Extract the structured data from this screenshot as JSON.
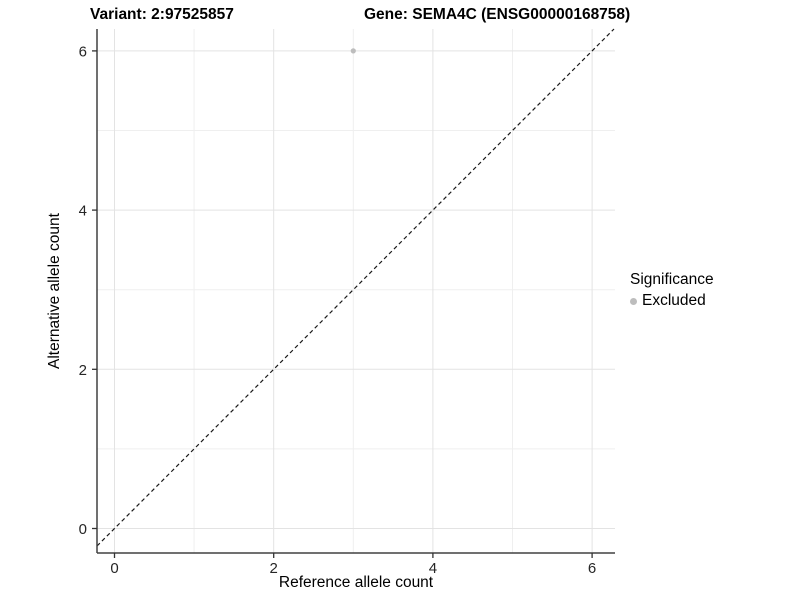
{
  "page": {
    "background": "#ffffff"
  },
  "chart_data": {
    "type": "scatter",
    "titles": {
      "left": "Variant: 2:97525857",
      "right": "Gene: SEMA4C (ENSG00000168758)"
    },
    "xlabel": "Reference allele count",
    "ylabel": "Alternative allele count",
    "x_ticks": [
      0,
      2,
      4,
      6
    ],
    "y_ticks": [
      0,
      2,
      4,
      6
    ],
    "xlim": [
      -0.25,
      6.3
    ],
    "ylim": [
      -0.3,
      6.3
    ],
    "grid": {
      "on": true,
      "major": [
        0,
        2,
        4,
        6
      ],
      "minor": [
        1,
        3,
        5
      ]
    },
    "series": [
      {
        "name": "Excluded",
        "color": "#bdbdbd",
        "marker": "dot",
        "points": [
          {
            "x": 3,
            "y": 6
          }
        ]
      }
    ],
    "reference_line": {
      "style": "dashed",
      "slope": 1,
      "intercept": 0,
      "color": "#1a1a1a",
      "dash": "4 3"
    },
    "legend": {
      "position": "right",
      "title": "Significance",
      "entries": [
        {
          "label": "Excluded",
          "color": "#bdbdbd",
          "marker": "dot-icon"
        }
      ]
    },
    "colors": {
      "grid_major": "#e3e3e3",
      "grid_minor": "#efefef",
      "axis_line": "#404040",
      "tick_mark": "#333333",
      "tick_label": "#262626",
      "point": "#bdbdbd"
    }
  }
}
